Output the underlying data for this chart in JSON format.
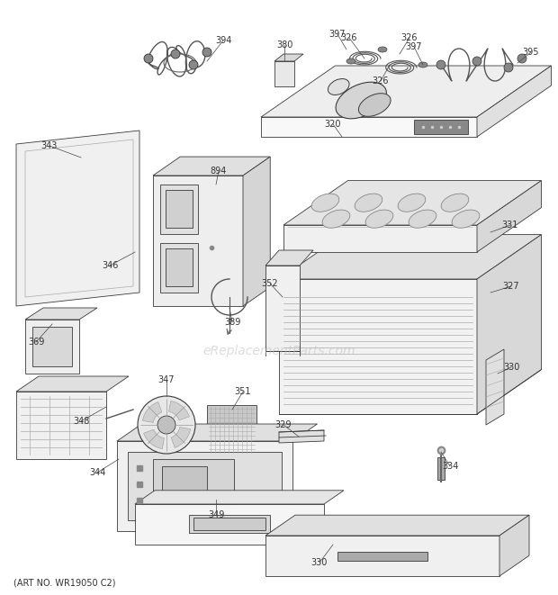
{
  "title": "",
  "art_no": "(ART NO. WR19050 C2)",
  "background_color": "#ffffff",
  "fig_width": 6.2,
  "fig_height": 6.61,
  "watermark": "eReplacementParts.com",
  "line_color": "#3a3a3a",
  "text_color": "#3a3a3a",
  "watermark_color": "#bbbbbb",
  "part_label_fontsize": 7.0,
  "watermark_fontsize": 10,
  "art_no_fontsize": 7.0,
  "face_light": "#f5f5f5",
  "face_mid": "#e8e8e8",
  "face_dark": "#d0d0d0",
  "face_darker": "#b8b8b8"
}
